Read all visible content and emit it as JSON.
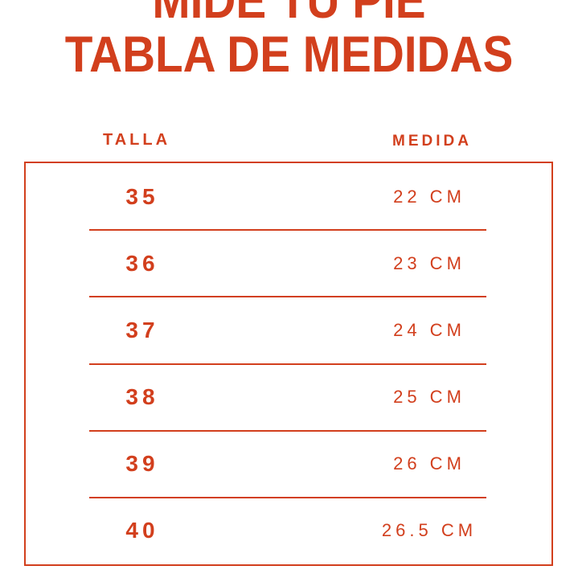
{
  "accent_color": "#D23F1D",
  "background_color": "#FFFFFF",
  "title": {
    "line1": "MIDE TU PIE",
    "line2": "TABLA DE MEDIDAS"
  },
  "table": {
    "headers": {
      "talla": "TALLA",
      "medida": "MEDIDA"
    },
    "rows": [
      {
        "talla": "35",
        "medida": "22 CM"
      },
      {
        "talla": "36",
        "medida": "23 CM"
      },
      {
        "talla": "37",
        "medida": "24 CM"
      },
      {
        "talla": "38",
        "medida": "25 CM"
      },
      {
        "talla": "39",
        "medida": "26 CM"
      },
      {
        "talla": "40",
        "medida": "26.5 CM"
      }
    ]
  },
  "chart_data": {
    "type": "table",
    "title": "MIDE TU PIE — TABLA DE MEDIDAS",
    "columns": [
      "TALLA",
      "MEDIDA"
    ],
    "rows": [
      [
        "35",
        "22 CM"
      ],
      [
        "36",
        "23 CM"
      ],
      [
        "37",
        "24 CM"
      ],
      [
        "38",
        "25 CM"
      ],
      [
        "39",
        "26 CM"
      ],
      [
        "40",
        "26.5 CM"
      ]
    ],
    "talla_values": [
      35,
      36,
      37,
      38,
      39,
      40
    ],
    "medida_cm_values": [
      22,
      23,
      24,
      25,
      26,
      26.5
    ]
  }
}
